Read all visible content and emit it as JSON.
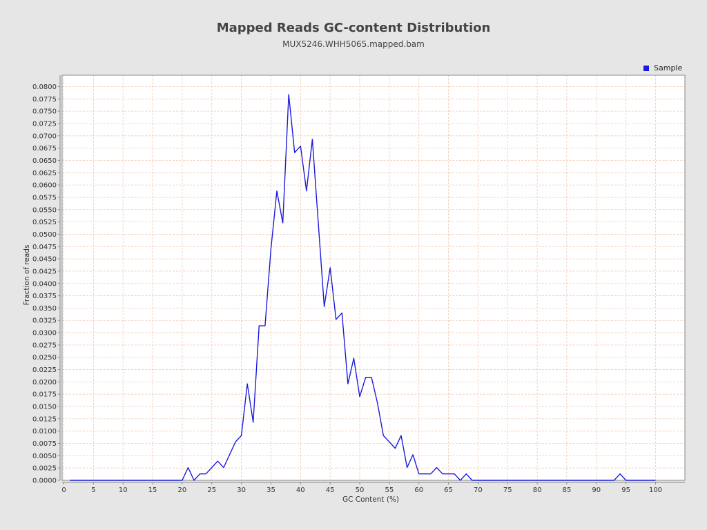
{
  "chart_data": {
    "type": "line",
    "title": "Mapped Reads GC-content Distribution",
    "subtitle": "MUX5246.WHH5065.mapped.bam",
    "xlabel": "GC Content (%)",
    "ylabel": "Fraction of reads",
    "xlim": [
      0,
      105
    ],
    "ylim": [
      0,
      0.082
    ],
    "xticks": [
      0,
      5,
      10,
      15,
      20,
      25,
      30,
      35,
      40,
      45,
      50,
      55,
      60,
      65,
      70,
      75,
      80,
      85,
      90,
      95,
      100
    ],
    "yticks": [
      "0.0000",
      "0.0025",
      "0.0050",
      "0.0075",
      "0.0100",
      "0.0125",
      "0.0150",
      "0.0175",
      "0.0200",
      "0.0225",
      "0.0250",
      "0.0275",
      "0.0300",
      "0.0325",
      "0.0350",
      "0.0375",
      "0.0400",
      "0.0425",
      "0.0450",
      "0.0475",
      "0.0500",
      "0.0525",
      "0.0550",
      "0.0575",
      "0.0600",
      "0.0625",
      "0.0650",
      "0.0675",
      "0.0700",
      "0.0725",
      "0.0750",
      "0.0775",
      "0.0800"
    ],
    "grid": true,
    "legend_position": "top-right",
    "series": [
      {
        "name": "Sample",
        "color": "#1a1adb",
        "x": [
          1,
          2,
          3,
          4,
          5,
          6,
          7,
          8,
          9,
          10,
          11,
          12,
          13,
          14,
          15,
          16,
          17,
          18,
          19,
          20,
          21,
          22,
          23,
          24,
          25,
          26,
          27,
          28,
          29,
          30,
          31,
          32,
          33,
          34,
          35,
          36,
          37,
          38,
          39,
          40,
          41,
          42,
          43,
          44,
          45,
          46,
          47,
          48,
          49,
          50,
          51,
          52,
          53,
          54,
          55,
          56,
          57,
          58,
          59,
          60,
          61,
          62,
          63,
          64,
          65,
          66,
          67,
          68,
          69,
          70,
          71,
          72,
          73,
          74,
          75,
          76,
          77,
          78,
          79,
          80,
          81,
          82,
          83,
          84,
          85,
          86,
          87,
          88,
          89,
          90,
          91,
          92,
          93,
          94,
          95,
          96,
          97,
          98,
          99,
          100
        ],
        "values": [
          0,
          0,
          0,
          0,
          0,
          0,
          0,
          0,
          0,
          0,
          0,
          0,
          0,
          0,
          0,
          0,
          0,
          0,
          0,
          0,
          0.0026,
          0,
          0.0013,
          0.0013,
          0.0026,
          0.0039,
          0.0026,
          0.0052,
          0.0078,
          0.0091,
          0.0196,
          0.0118,
          0.0314,
          0.0314,
          0.047,
          0.0588,
          0.0523,
          0.0784,
          0.0666,
          0.0679,
          0.0588,
          0.0693,
          0.0523,
          0.0353,
          0.0432,
          0.0327,
          0.034,
          0.0196,
          0.0248,
          0.017,
          0.0209,
          0.0209,
          0.0157,
          0.0091,
          0.0078,
          0.0065,
          0.0091,
          0.0026,
          0.0052,
          0.0013,
          0.0013,
          0.0013,
          0.0026,
          0.0013,
          0.0013,
          0.0013,
          0,
          0.0013,
          0,
          0,
          0,
          0,
          0,
          0,
          0,
          0,
          0,
          0,
          0,
          0,
          0,
          0,
          0,
          0,
          0,
          0,
          0,
          0,
          0,
          0,
          0,
          0,
          0,
          0.0013,
          0,
          0,
          0,
          0,
          0,
          0
        ]
      }
    ]
  },
  "colors": {
    "background": "#e6e6e6",
    "plot_background": "#ffffff",
    "grid": "#f0c8b0",
    "line": "#1a1adb"
  }
}
